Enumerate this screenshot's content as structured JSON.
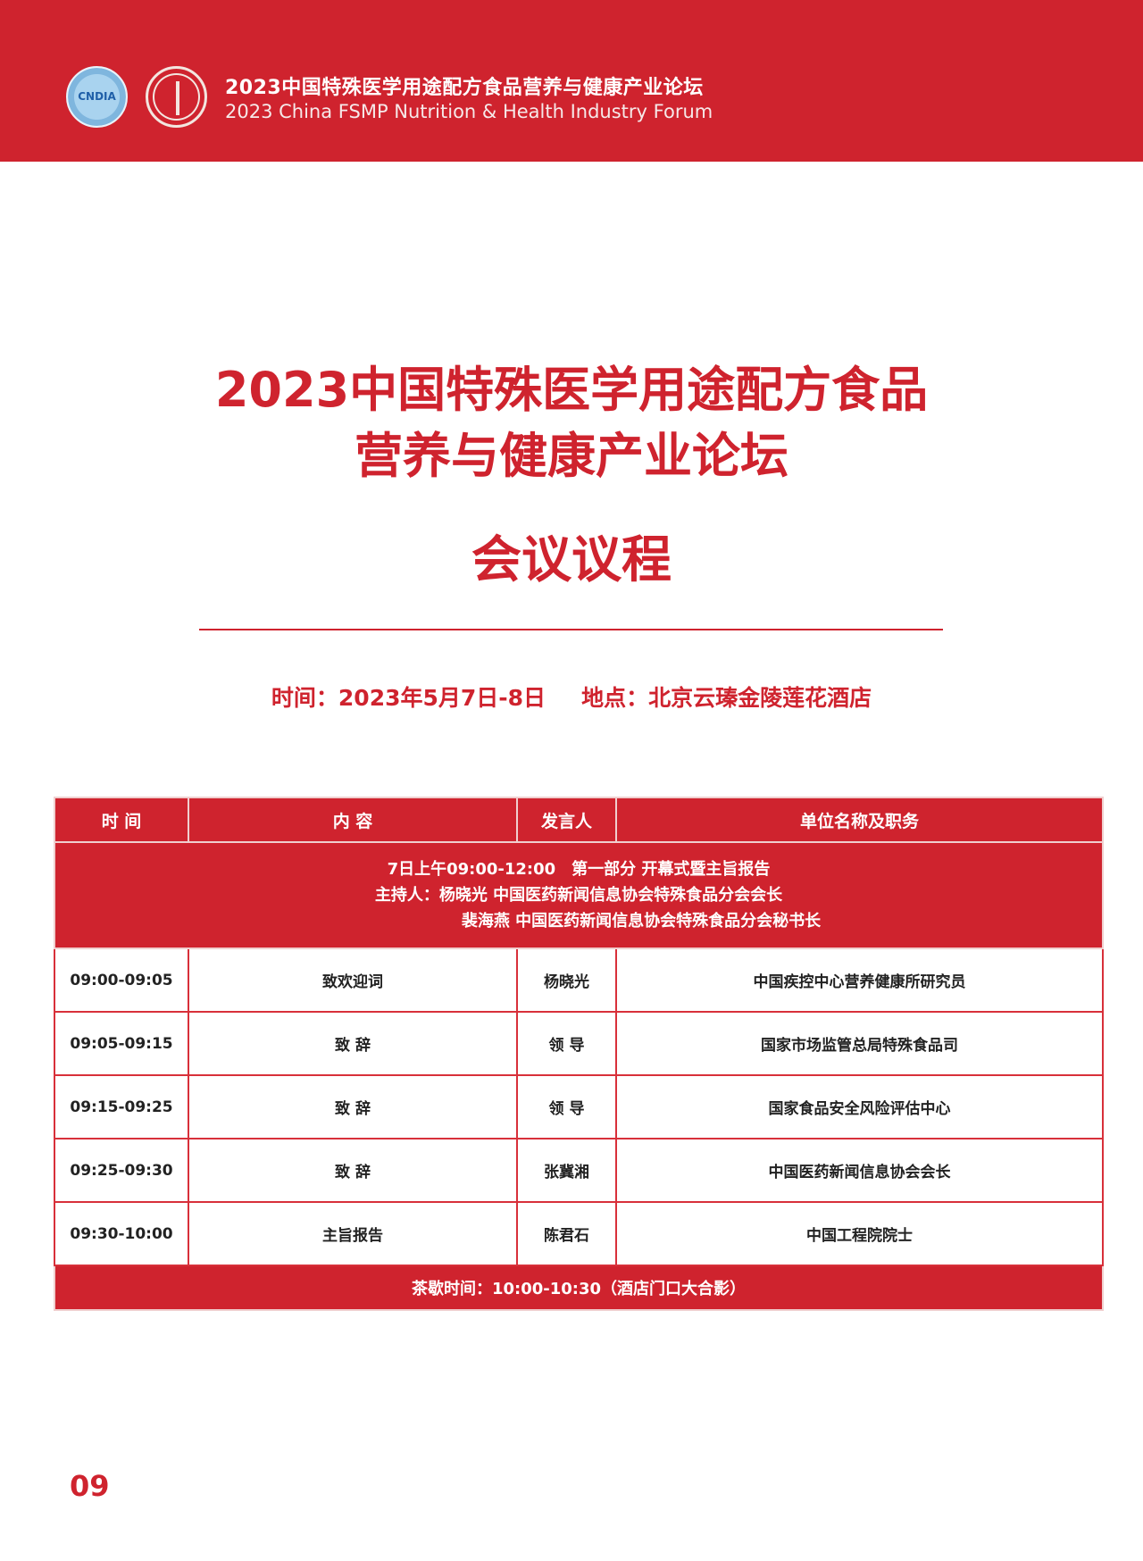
{
  "header": {
    "logo1_text": "CNDIA",
    "title_cn": "2023中国特殊医学用途配方食品营养与健康产业论坛",
    "title_en": "2023 China FSMP Nutrition & Health Industry Forum"
  },
  "main": {
    "title_line1": "2023中国特殊医学用途配方食品",
    "title_line2": "营养与健康产业论坛",
    "subtitle": "会议议程",
    "time": "时间：2023年5月7日-8日",
    "place": "地点：北京云瑧金陵莲花酒店"
  },
  "table": {
    "headers": [
      "时 间",
      "内 容",
      "发言人",
      "单位名称及职务"
    ],
    "section": {
      "line1": "7日上午09:00-12:00　第一部分 开幕式暨主旨报告",
      "line2": "主持人：杨晓光  中国医药新闻信息协会特殊食品分会会长",
      "line3": "裴海燕  中国医药新闻信息协会特殊食品分会秘书长"
    },
    "rows": [
      {
        "time": "09:00-09:05",
        "content": "致欢迎词",
        "speaker": "杨晓光",
        "org": "中国疾控中心营养健康所研究员"
      },
      {
        "time": "09:05-09:15",
        "content": "致 辞",
        "speaker": "领 导",
        "org": "国家市场监管总局特殊食品司"
      },
      {
        "time": "09:15-09:25",
        "content": "致 辞",
        "speaker": "领 导",
        "org": "国家食品安全风险评估中心"
      },
      {
        "time": "09:25-09:30",
        "content": "致 辞",
        "speaker": "张冀湘",
        "org": "中国医药新闻信息协会会长"
      },
      {
        "time": "09:30-10:00",
        "content": "主旨报告",
        "speaker": "陈君石",
        "org": "中国工程院院士"
      }
    ],
    "footer": "茶歇时间：10:00-10:30（酒店门口大合影）"
  },
  "page_number": "09",
  "colors": {
    "brand_red": "#cf232e"
  }
}
